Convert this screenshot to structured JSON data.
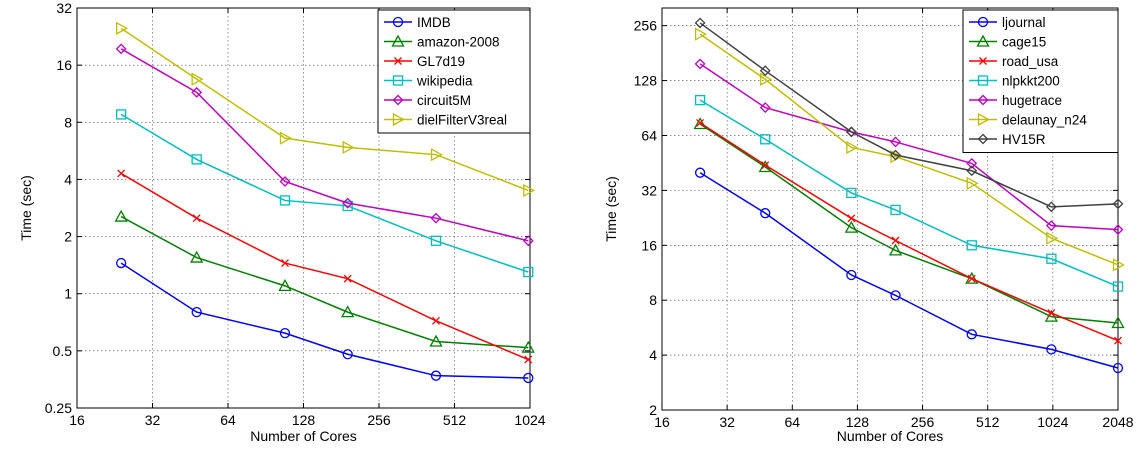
{
  "chart_data": [
    {
      "type": "line",
      "xlabel": "Number of Cores",
      "ylabel": "Time (sec)",
      "xscale": "log2",
      "yscale": "log2",
      "xlim": [
        16,
        1024
      ],
      "ylim": [
        0.25,
        32
      ],
      "xticks": [
        16,
        32,
        64,
        128,
        256,
        512,
        1024
      ],
      "xtick_labels": [
        "16",
        "32",
        "64",
        "128",
        "256",
        "512",
        "1024"
      ],
      "yticks": [
        0.25,
        0.5,
        1,
        2,
        4,
        8,
        16,
        32
      ],
      "ytick_labels": [
        "0.25",
        "0.5",
        "1",
        "2",
        "4",
        "8",
        "16",
        "32"
      ],
      "grid": true,
      "legend_position": "top-right",
      "x": [
        24,
        48,
        108,
        192,
        432,
        1008
      ],
      "series": [
        {
          "name": "IMDB",
          "color": "#0000ff",
          "marker": "circle",
          "values": [
            1.45,
            0.8,
            0.62,
            0.48,
            0.37,
            0.36
          ]
        },
        {
          "name": "amazon-2008",
          "color": "#008000",
          "marker": "triangle-up",
          "values": [
            2.55,
            1.55,
            1.1,
            0.8,
            0.56,
            0.52
          ]
        },
        {
          "name": "GL7d19",
          "color": "#ff0000",
          "marker": "x",
          "values": [
            4.3,
            2.5,
            1.45,
            1.2,
            0.72,
            0.45
          ]
        },
        {
          "name": "wikipedia",
          "color": "#00bfbf",
          "marker": "square",
          "values": [
            8.8,
            5.1,
            3.1,
            2.9,
            1.9,
            1.3
          ]
        },
        {
          "name": "circuit5M",
          "color": "#bf00bf",
          "marker": "diamond",
          "values": [
            19.5,
            11.5,
            3.9,
            3.0,
            2.5,
            1.9
          ]
        },
        {
          "name": "dielFilterV3real",
          "color": "#bfbf00",
          "marker": "triangle-right",
          "values": [
            25,
            13.5,
            6.6,
            5.9,
            5.4,
            3.5
          ]
        }
      ]
    },
    {
      "type": "line",
      "xlabel": "Number of Cores",
      "ylabel": "Time (sec)",
      "xscale": "log2",
      "yscale": "log2",
      "xlim": [
        16,
        2048
      ],
      "ylim": [
        2,
        320
      ],
      "xticks": [
        16,
        32,
        64,
        128,
        256,
        512,
        1024,
        2048
      ],
      "xtick_labels": [
        "16",
        "32",
        "64",
        "128",
        "256",
        "512",
        "1024",
        "2048"
      ],
      "yticks": [
        2,
        4,
        8,
        16,
        32,
        64,
        128,
        256
      ],
      "ytick_labels": [
        "2",
        "4",
        "8",
        "16",
        "32",
        "64",
        "128",
        "256"
      ],
      "grid": true,
      "legend_position": "top-right",
      "x": [
        24,
        48,
        120,
        192,
        432,
        1008,
        2048
      ],
      "series": [
        {
          "name": "ljournal",
          "color": "#0000ff",
          "marker": "circle",
          "values": [
            40,
            24,
            11,
            8.5,
            5.2,
            4.3,
            3.4
          ]
        },
        {
          "name": "cage15",
          "color": "#008000",
          "marker": "triangle-up",
          "values": [
            74,
            43,
            20,
            15,
            10.5,
            6.5,
            6
          ]
        },
        {
          "name": "road_usa",
          "color": "#ff0000",
          "marker": "x",
          "values": [
            75,
            44,
            22.5,
            17,
            10.5,
            6.8,
            4.8
          ]
        },
        {
          "name": "nlpkkt200",
          "color": "#00bfbf",
          "marker": "square",
          "values": [
            100,
            61,
            31,
            25,
            16,
            13.5,
            9.5
          ]
        },
        {
          "name": "hugetrace",
          "color": "#bf00bf",
          "marker": "diamond",
          "values": [
            158,
            91,
            67,
            59,
            45,
            20.5,
            19.5
          ]
        },
        {
          "name": "delaunay_n24",
          "color": "#bfbf00",
          "marker": "triangle-right",
          "values": [
            230,
            130,
            55,
            49,
            35,
            17.5,
            12.5
          ]
        },
        {
          "name": "HV15R",
          "color": "#404040",
          "marker": "diamond",
          "values": [
            265,
            145,
            67,
            50,
            41,
            26,
            27
          ]
        }
      ]
    }
  ]
}
